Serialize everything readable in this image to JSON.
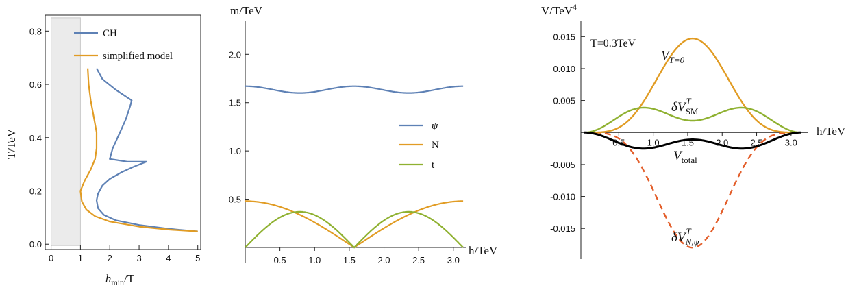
{
  "chart_data": [
    {
      "type": "line",
      "xlabel_main": "h",
      "xlabel_sub": "min",
      "xlabel_tail": "/T",
      "ylabel": "T/TeV",
      "xlim": [
        -0.2,
        5.1
      ],
      "ylim": [
        -0.02,
        0.86
      ],
      "xticks": [
        "0",
        "1",
        "2",
        "3",
        "4",
        "5"
      ],
      "yticks": [
        "0.0",
        "0.2",
        "0.4",
        "0.6",
        "0.8"
      ],
      "shaded_region_x": [
        0,
        1
      ],
      "legend_position": "top-right",
      "series": [
        {
          "name": "CH",
          "color": "#5e81b5",
          "points": [
            [
              5.0,
              0.048
            ],
            [
              4.0,
              0.058
            ],
            [
              3.0,
              0.072
            ],
            [
              2.2,
              0.09
            ],
            [
              1.8,
              0.11
            ],
            [
              1.6,
              0.135
            ],
            [
              1.55,
              0.165
            ],
            [
              1.6,
              0.19
            ],
            [
              1.75,
              0.22
            ],
            [
              2.0,
              0.245
            ],
            [
              2.4,
              0.27
            ],
            [
              2.8,
              0.29
            ],
            [
              3.25,
              0.31
            ],
            [
              2.6,
              0.31
            ],
            [
              2.0,
              0.32
            ],
            [
              2.1,
              0.36
            ],
            [
              2.35,
              0.42
            ],
            [
              2.55,
              0.47
            ],
            [
              2.7,
              0.52
            ],
            [
              2.75,
              0.54
            ],
            [
              2.2,
              0.58
            ],
            [
              1.75,
              0.62
            ],
            [
              1.55,
              0.66
            ]
          ]
        },
        {
          "name": "simplified model",
          "color": "#e19c24",
          "points": [
            [
              5.0,
              0.048
            ],
            [
              4.0,
              0.055
            ],
            [
              3.0,
              0.066
            ],
            [
              2.0,
              0.085
            ],
            [
              1.5,
              0.105
            ],
            [
              1.2,
              0.13
            ],
            [
              1.05,
              0.16
            ],
            [
              1.0,
              0.2
            ],
            [
              1.15,
              0.24
            ],
            [
              1.35,
              0.28
            ],
            [
              1.5,
              0.32
            ],
            [
              1.55,
              0.36
            ],
            [
              1.55,
              0.42
            ],
            [
              1.45,
              0.48
            ],
            [
              1.35,
              0.54
            ],
            [
              1.28,
              0.6
            ],
            [
              1.25,
              0.66
            ]
          ]
        }
      ]
    },
    {
      "type": "line",
      "ylabel": "m/TeV",
      "xlabel": "h/TeV",
      "xlim": [
        0,
        3.18
      ],
      "ylim": [
        0,
        2.35
      ],
      "xticks": [
        "0.5",
        "1.0",
        "1.5",
        "2.0",
        "2.5",
        "3.0"
      ],
      "yticks": [
        "0.5",
        "1.0",
        "1.5",
        "2.0"
      ],
      "legend_position": "right",
      "series": [
        {
          "name": "ψ",
          "color": "#5e81b5",
          "formula": "sqrt(1.6^2 + 0.48^2 cos^2(2h))"
        },
        {
          "name": "N",
          "color": "#e19c24",
          "formula": "0.48 |cos(h)|"
        },
        {
          "name": "t",
          "color": "#8fb131",
          "formula": "0.37 |sin(2h)|"
        }
      ]
    },
    {
      "type": "line",
      "ylabel": "V/TeV",
      "ylabel_sup": "4",
      "xlabel": "h/TeV",
      "xlim": [
        -0.05,
        3.25
      ],
      "ylim": [
        -0.0198,
        0.0175
      ],
      "xticks": [
        "0.5",
        "1.0",
        "1.5",
        "2.0",
        "2.5",
        "3.0"
      ],
      "yticks": [
        "0.015",
        "0.010",
        "0.005",
        "-0.005",
        "-0.010",
        "-0.015"
      ],
      "annotation": "T=0.3TeV",
      "series": [
        {
          "name": "V_{T=0}",
          "color": "#e19c24",
          "dash": false,
          "formula": "0.0147 sin^4(h)"
        },
        {
          "name": "δV_SM^T",
          "color": "#8fb131",
          "dash": false,
          "formula": "0.00335 sin^2(2h) + 0.00185 sin^4(h)"
        },
        {
          "name": "δV_{N,ψ}^T",
          "color": "#e35e2a",
          "dash": true,
          "formula": "-0.018 sin^4(h)"
        },
        {
          "name": "V_total",
          "color": "#000000",
          "dash": false,
          "formula": "-(0.0022 sin^2(2h) + 0.0011 sin^4(h))"
        }
      ],
      "series_labels": {
        "v_t0_main": "V",
        "v_t0_sub": "T=0",
        "sm_main": "δV",
        "sm_sup": "T",
        "sm_sub": "SM",
        "npsi_main": "δV",
        "npsi_sup": "T",
        "npsi_sub": "N,ψ",
        "total_main": "V",
        "total_sub": "total"
      }
    }
  ]
}
